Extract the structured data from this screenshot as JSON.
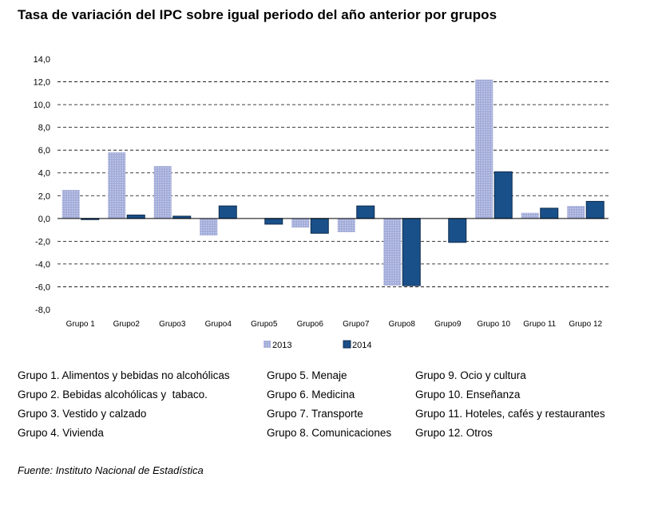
{
  "title": "Tasa de variación del IPC sobre igual periodo del año anterior por grupos",
  "chart_data": {
    "type": "bar",
    "categories": [
      "Grupo 1",
      "Grupo2",
      "Grupo3",
      "Grupo4",
      "Grupo5",
      "Grupo6",
      "Grupo7",
      "Grupo8",
      "Grupo9",
      "Grupo 10",
      "Grupo 11",
      "Grupo 12"
    ],
    "series": [
      {
        "name": "2013",
        "color": "#aab3dd",
        "values": [
          2.5,
          5.8,
          4.6,
          -1.5,
          0.0,
          -0.8,
          -1.2,
          -5.9,
          0.0,
          12.2,
          0.5,
          1.1
        ]
      },
      {
        "name": "2014",
        "color": "#1a5089",
        "values": [
          -0.1,
          0.3,
          0.2,
          1.1,
          -0.5,
          -1.3,
          1.1,
          -5.9,
          -2.1,
          4.1,
          0.9,
          1.5
        ]
      }
    ],
    "ylim": [
      -8.0,
      14.0
    ],
    "yticks": [
      "-8,0",
      "-6,0",
      "-4,0",
      "-2,0",
      "0,0",
      "2,0",
      "4,0",
      "6,0",
      "8,0",
      "10,0",
      "12,0",
      "14,0"
    ],
    "grid": "dashed horizontal",
    "legend": "bottom-center"
  },
  "groups": [
    [
      "Grupo 1. Alimentos y bebidas no alcohólicas",
      "Grupo 2. Bebidas alcohólicas y  tabaco.",
      "Grupo 3. Vestido y calzado",
      "Grupo 4. Vivienda"
    ],
    [
      "Grupo 5. Menaje",
      "Grupo 6. Medicina",
      "Grupo 7. Transporte",
      "Grupo 8. Comunicaciones"
    ],
    [
      "Grupo 9. Ocio y cultura",
      "Grupo 10. Enseñanza",
      "Grupo 11. Hoteles, cafés y restaurantes",
      "Grupo 12. Otros"
    ]
  ],
  "source": "Fuente: Instituto Nacional de Estadística"
}
